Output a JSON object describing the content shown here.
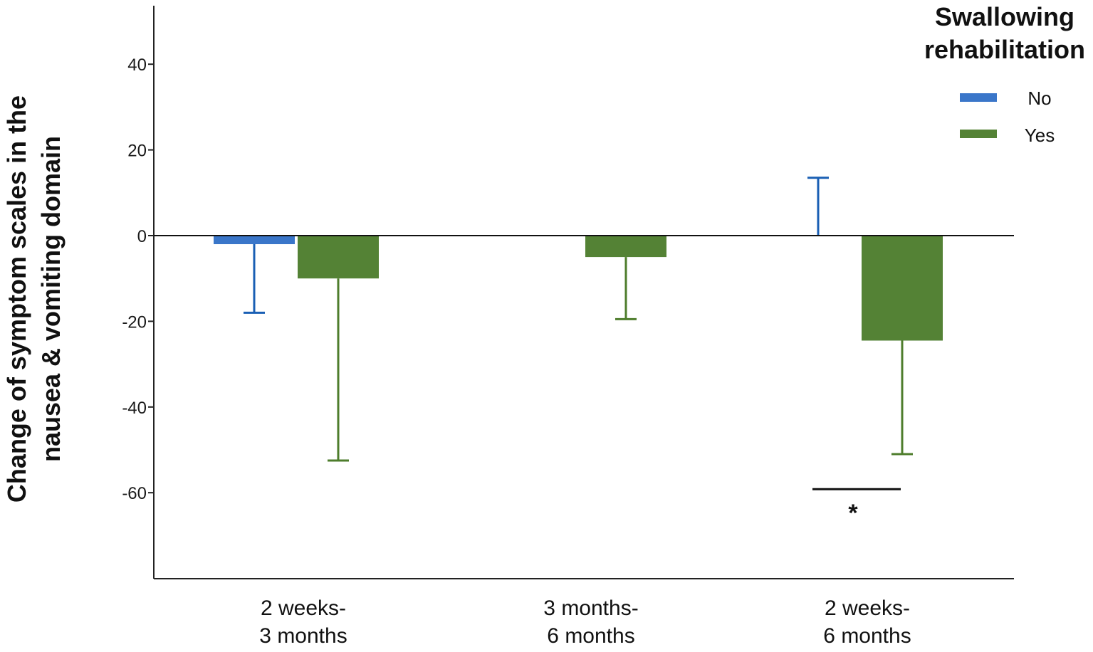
{
  "chart_data": {
    "type": "bar",
    "categories": [
      {
        "line1": "2 weeks-",
        "line2": "3 months"
      },
      {
        "line1": "3 months-",
        "line2": "6 months"
      },
      {
        "line1": "2 weeks-",
        "line2": "6 months"
      }
    ],
    "series": [
      {
        "name": "No",
        "color": "#3a76c9",
        "error_color": "#1a5fb4",
        "values": [
          -2,
          0,
          0
        ],
        "error_ends": [
          -18,
          null,
          13.5
        ]
      },
      {
        "name": "Yes",
        "color": "#548235",
        "error_color": "#4e7d2c",
        "values": [
          -10,
          -5,
          -24.5
        ],
        "error_ends": [
          -52.5,
          -19.5,
          -51
        ]
      }
    ],
    "ylabel_line1": "Change of symptom scales in the",
    "ylabel_line2": "nausea & vomiting domain",
    "xlabel": "",
    "ylim": [
      -80,
      54
    ],
    "yticks": [
      40,
      20,
      0,
      -20,
      -40,
      -60
    ],
    "legend": {
      "title_line1": "Swallowing",
      "title_line2": "rehabilitation",
      "position": "top-right"
    },
    "significance": {
      "category_index": 2,
      "value": -60,
      "label": "*"
    }
  }
}
